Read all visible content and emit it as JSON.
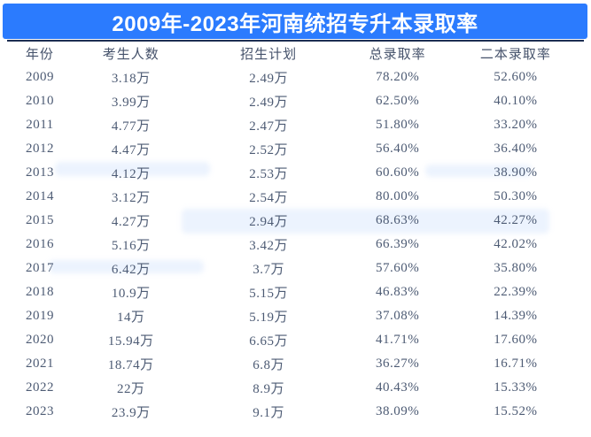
{
  "banner": {
    "title": "2009年-2023年河南统招专升本录取率",
    "bg_color": "#2b7bfe",
    "text_color": "#ffffff"
  },
  "divider_color": "#1d2e52",
  "table_text_color": "#4d5b74",
  "chart_data": {
    "type": "table",
    "title": "2009年-2023年河南统招专升本录取率",
    "columns": [
      "年份",
      "考生人数",
      "招生计划",
      "总录取率",
      "二本录取率"
    ],
    "rows": [
      [
        "2009",
        "3.18万",
        "2.49万",
        "78.20%",
        "52.60%"
      ],
      [
        "2010",
        "3.99万",
        "2.49万",
        "62.50%",
        "40.10%"
      ],
      [
        "2011",
        "4.77万",
        "2.47万",
        "51.80%",
        "33.20%"
      ],
      [
        "2012",
        "4.47万",
        "2.52万",
        "56.40%",
        "36.40%"
      ],
      [
        "2013",
        "4.12万",
        "2.53万",
        "60.60%",
        "38.90%"
      ],
      [
        "2014",
        "3.12万",
        "2.54万",
        "80.00%",
        "50.30%"
      ],
      [
        "2015",
        "4.27万",
        "2.94万",
        "68.63%",
        "42.27%"
      ],
      [
        "2016",
        "5.16万",
        "3.42万",
        "66.39%",
        "42.02%"
      ],
      [
        "2017",
        "6.42万",
        "3.7万",
        "57.60%",
        "35.80%"
      ],
      [
        "2018",
        "10.9万",
        "5.15万",
        "46.83%",
        "22.39%"
      ],
      [
        "2019",
        "14万",
        "5.19万",
        "37.08%",
        "14.39%"
      ],
      [
        "2020",
        "15.94万",
        "6.65万",
        "41.71%",
        "17.60%"
      ],
      [
        "2021",
        "18.74万",
        "6.8万",
        "36.27%",
        "16.71%"
      ],
      [
        "2022",
        "22万",
        "8.9万",
        "40.43%",
        "15.33%"
      ],
      [
        "2023",
        "23.9万",
        "9.1万",
        "38.09%",
        "15.52%"
      ]
    ]
  }
}
